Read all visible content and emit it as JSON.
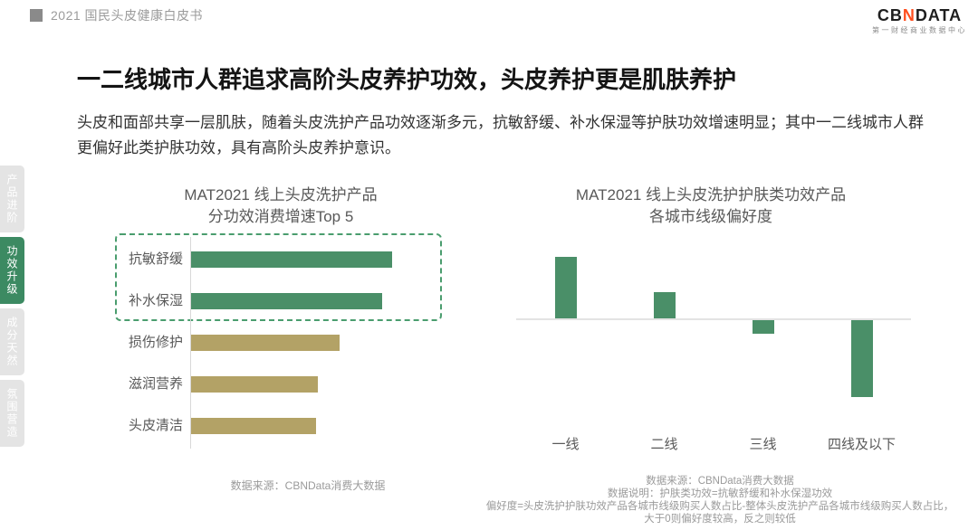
{
  "header": {
    "doc_title": "2021 国民头皮健康白皮书"
  },
  "logo": {
    "text_cb": "CB",
    "text_n": "N",
    "text_data": "DATA",
    "subtitle": "第一财经商业数据中心"
  },
  "page": {
    "title": "一二线城市人群追求高阶头皮养护功效，头皮养护更是肌肤养护",
    "body": "头皮和面部共享一层肌肤，随着头皮洗护产品功效逐渐多元，抗敏舒缓、补水保湿等护肤功效增速明显；其中一二线城市人群更偏好此类护肤功效，具有高阶头皮养护意识。"
  },
  "sidebar": {
    "items": [
      {
        "label": "产品进阶",
        "active": false
      },
      {
        "label": "功效升级",
        "active": true
      },
      {
        "label": "成分天然",
        "active": false
      },
      {
        "label": "氛围营造",
        "active": false
      }
    ]
  },
  "colors": {
    "green_bar": "#4a8f68",
    "tan_bar": "#b3a266",
    "active_tab": "#3c8a62",
    "inactive_tab": "#e4e4e4",
    "dashed_box": "#4a9d6e",
    "logo_orange": "#ff4f1f"
  },
  "chart_data": [
    {
      "type": "bar",
      "orientation": "horizontal",
      "title_line1": "MAT2021 线上头皮洗护产品",
      "title_line2": "分功效消费增速Top 5",
      "categories": [
        "抗敏舒缓",
        "补水保湿",
        "损伤修护",
        "滋润营养",
        "头皮清洁"
      ],
      "values": [
        100,
        95,
        74,
        63,
        62
      ],
      "values_note": "relative growth index estimated from bar lengths; no data labels shown",
      "bar_colors": [
        "#4a8f68",
        "#4a8f68",
        "#b3a266",
        "#b3a266",
        "#b3a266"
      ],
      "highlighted_categories": [
        "抗敏舒缓",
        "补水保湿"
      ],
      "grid": false,
      "source": "数据来源：CBNData消费大数据"
    },
    {
      "type": "bar",
      "orientation": "vertical",
      "title_line1": "MAT2021 线上头皮洗护护肤类功效产品",
      "title_line2": "各城市线级偏好度",
      "categories": [
        "一线",
        "二线",
        "三线",
        "四线及以下"
      ],
      "values": [
        0.2,
        0.085,
        -0.045,
        -0.25
      ],
      "values_note": "preference index estimated from column heights; no axis tick labels shown",
      "ylim": [
        -0.3,
        0.25
      ],
      "baseline": 0,
      "grid": false,
      "bar_color": "#4a8f68",
      "source_lines": [
        "数据来源：CBNData消费大数据",
        "数据说明：护肤类功效=抗敏舒缓和补水保湿功效",
        "偏好度=头皮洗护护肤功效产品各城市线级购买人数占比-整体头皮洗护产品各城市线级购买人数占比，",
        "大于0则偏好度较高，反之则较低"
      ]
    }
  ]
}
